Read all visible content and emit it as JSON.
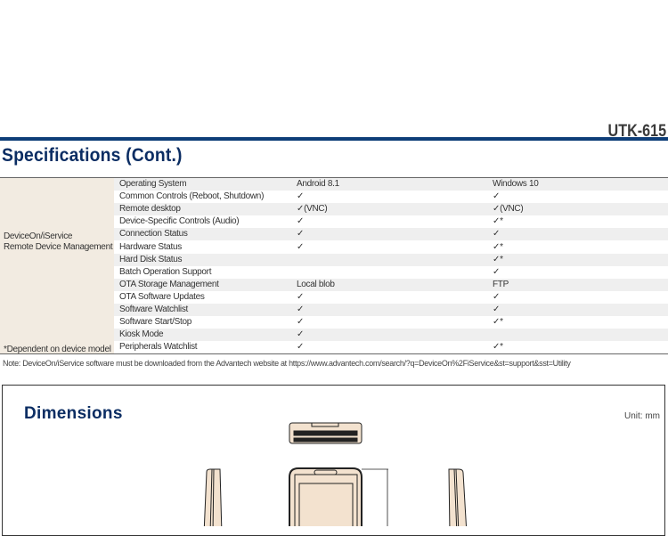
{
  "header": {
    "model": "UTK-615",
    "title": "Specifications (Cont.)"
  },
  "spec_table": {
    "group_label_line1": "DeviceOn/iService",
    "group_label_line2": "Remote Device Management",
    "footnote": "*Dependent on device model",
    "rows": [
      {
        "feature": "Operating System",
        "android": "Android 8.1",
        "windows": "Windows 10"
      },
      {
        "feature": "Common Controls (Reboot, Shutdown)",
        "android": "✓",
        "windows": "✓"
      },
      {
        "feature": "Remote desktop",
        "android": "✓(VNC)",
        "windows": "✓(VNC)"
      },
      {
        "feature": "Device-Specific Controls (Audio)",
        "android": "✓",
        "windows": "✓*"
      },
      {
        "feature": "Connection Status",
        "android": "✓",
        "windows": "✓"
      },
      {
        "feature": "Hardware Status",
        "android": "✓",
        "windows": "✓*"
      },
      {
        "feature": "Hard Disk Status",
        "android": "",
        "windows": "✓*"
      },
      {
        "feature": "Batch Operation Support",
        "android": "",
        "windows": "✓"
      },
      {
        "feature": "OTA Storage Management",
        "android": "Local blob",
        "windows": "FTP"
      },
      {
        "feature": "OTA Software Updates",
        "android": "✓",
        "windows": "✓"
      },
      {
        "feature": "Software Watchlist",
        "android": "✓",
        "windows": "✓"
      },
      {
        "feature": "Software Start/Stop",
        "android": "✓",
        "windows": "✓*"
      },
      {
        "feature": "Kiosk Mode",
        "android": "✓",
        "windows": ""
      },
      {
        "feature": "Peripherals Watchlist",
        "android": "✓",
        "windows": "✓*"
      }
    ]
  },
  "note": "Note: DeviceOn/iService software must be downloaded from the Advantech website at https://www.advantech.com/search/?q=DeviceOn%2FiService&st=support&sst=Utility",
  "dimensions": {
    "title": "Dimensions",
    "unit": "Unit: mm"
  },
  "colors": {
    "brand_blue": "#0e3e78",
    "title_navy": "#0b2d63",
    "device_fill": "#f3e2cf",
    "group_cell": "#f2ebe1",
    "row_shade": "#efefef"
  }
}
